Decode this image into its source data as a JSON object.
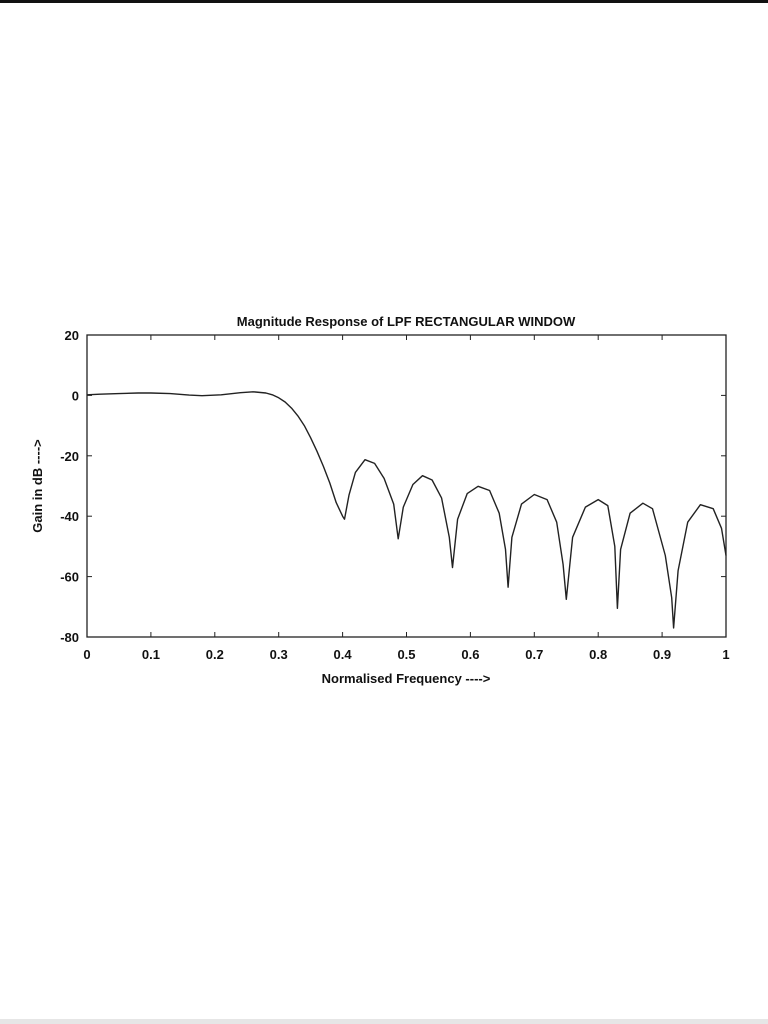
{
  "chart_data": {
    "type": "line",
    "title": "Magnitude Response of LPF RECTANGULAR WINDOW",
    "xlabel": "Normalised Frequency ---->",
    "ylabel": "Gain in dB ---->",
    "xlim": [
      0,
      1
    ],
    "ylim": [
      -80,
      20
    ],
    "xticks": [
      "0",
      "0.1",
      "0.2",
      "0.3",
      "0.4",
      "0.5",
      "0.6",
      "0.7",
      "0.8",
      "0.9",
      "1"
    ],
    "yticks": [
      "20",
      "0",
      "-20",
      "-40",
      "-60",
      "-80"
    ],
    "grid": false,
    "line_color": "#222222",
    "series": [
      {
        "x": [
          0,
          0.02,
          0.05,
          0.08,
          0.1,
          0.13,
          0.16,
          0.18,
          0.21,
          0.24,
          0.26,
          0.28,
          0.29,
          0.3,
          0.31,
          0.32,
          0.33,
          0.34,
          0.35,
          0.36,
          0.37,
          0.38,
          0.39,
          0.4,
          0.403,
          0.41,
          0.42,
          0.435,
          0.45,
          0.465,
          0.48,
          0.487,
          0.495,
          0.51,
          0.525,
          0.54,
          0.555,
          0.567,
          0.572,
          0.58,
          0.595,
          0.612,
          0.63,
          0.645,
          0.655,
          0.659,
          0.665,
          0.68,
          0.7,
          0.72,
          0.735,
          0.745,
          0.75,
          0.76,
          0.78,
          0.8,
          0.815,
          0.826,
          0.83,
          0.835,
          0.85,
          0.87,
          0.885,
          0.905,
          0.915,
          0.918,
          0.925,
          0.94,
          0.96,
          0.98,
          0.993,
          1.0
        ],
        "y": [
          0.2,
          0.4,
          0.6,
          0.8,
          0.8,
          0.6,
          0.1,
          -0.1,
          0.2,
          0.9,
          1.2,
          0.8,
          0.2,
          -0.8,
          -2.2,
          -4.2,
          -6.8,
          -10,
          -14,
          -18.5,
          -23.5,
          -29,
          -35.5,
          -40,
          -41,
          -33,
          -25.5,
          -21.3,
          -22.5,
          -27.5,
          -36,
          -47.5,
          -37,
          -29.5,
          -26.6,
          -28,
          -34,
          -47,
          -57,
          -41,
          -32.5,
          -30.1,
          -31.5,
          -39,
          -51,
          -63.5,
          -47,
          -36,
          -32.8,
          -34.5,
          -42,
          -56,
          -67.5,
          -47,
          -37,
          -34.5,
          -36.5,
          -50,
          -70.5,
          -51,
          -39,
          -35.7,
          -37.5,
          -53,
          -67,
          -77,
          -58,
          -42,
          -36.2,
          -37.5,
          -44,
          -53
        ]
      }
    ]
  }
}
